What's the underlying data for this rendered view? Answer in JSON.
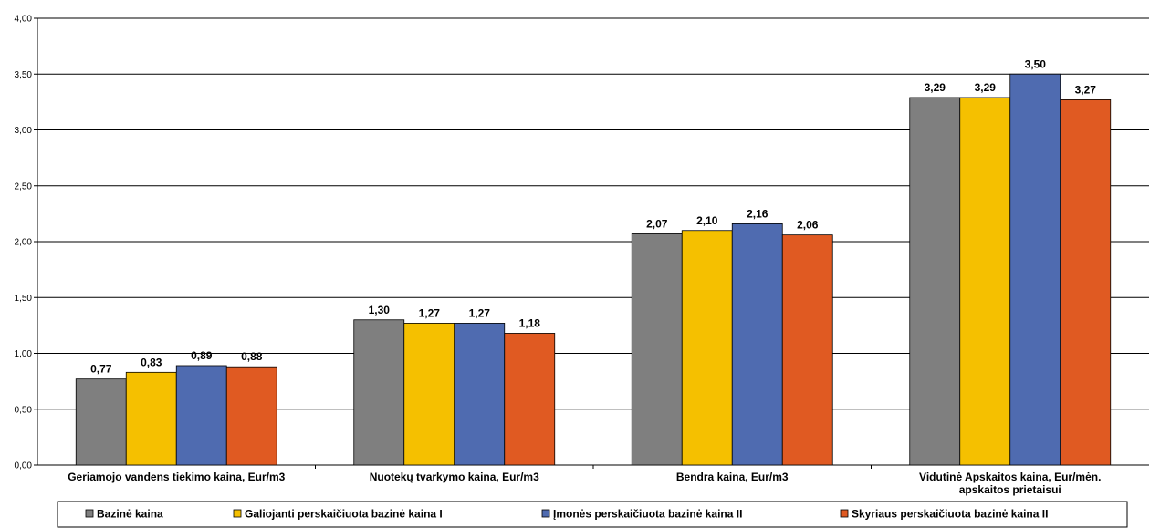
{
  "chart_data": {
    "type": "bar",
    "categories": [
      [
        "Geriamojo vandens tiekimo kaina, Eur/m3"
      ],
      [
        "Nuotekų tvarkymo kaina, Eur/m3"
      ],
      [
        "Bendra kaina, Eur/m3"
      ],
      [
        "Vidutinė Apskaitos kaina, Eur/mėn.",
        "apskaitos prietaisui"
      ]
    ],
    "series": [
      {
        "name": "Bazinė kaina",
        "color": "#7f7f7f",
        "values": [
          0.77,
          1.3,
          2.07,
          3.29
        ],
        "labels": [
          "0,77",
          "1,30",
          "2,07",
          "3,29"
        ]
      },
      {
        "name": "Galiojanti perskaičiuota bazinė kaina I",
        "color": "#f5c000",
        "values": [
          0.83,
          1.27,
          2.1,
          3.29
        ],
        "labels": [
          "0,83",
          "1,27",
          "2,10",
          "3,29"
        ]
      },
      {
        "name": "Įmonės perskaičiuota bazinė kaina II",
        "color": "#4f6bb0",
        "values": [
          0.89,
          1.27,
          2.16,
          3.5
        ],
        "labels": [
          "0,89",
          "1,27",
          "2,16",
          "3,50"
        ]
      },
      {
        "name": "Skyriaus perskaičiuota bazinė kaina II",
        "color": "#e05a22",
        "values": [
          0.88,
          1.18,
          2.06,
          3.27
        ],
        "labels": [
          "0,88",
          "1,18",
          "2,06",
          "3,27"
        ]
      }
    ],
    "yticks": [
      "0,00",
      "0,50",
      "1,00",
      "1,50",
      "2,00",
      "2,50",
      "3,00",
      "3,50",
      "4,00"
    ],
    "ylim": [
      0,
      4
    ],
    "grid": true,
    "legend_position": "bottom"
  }
}
